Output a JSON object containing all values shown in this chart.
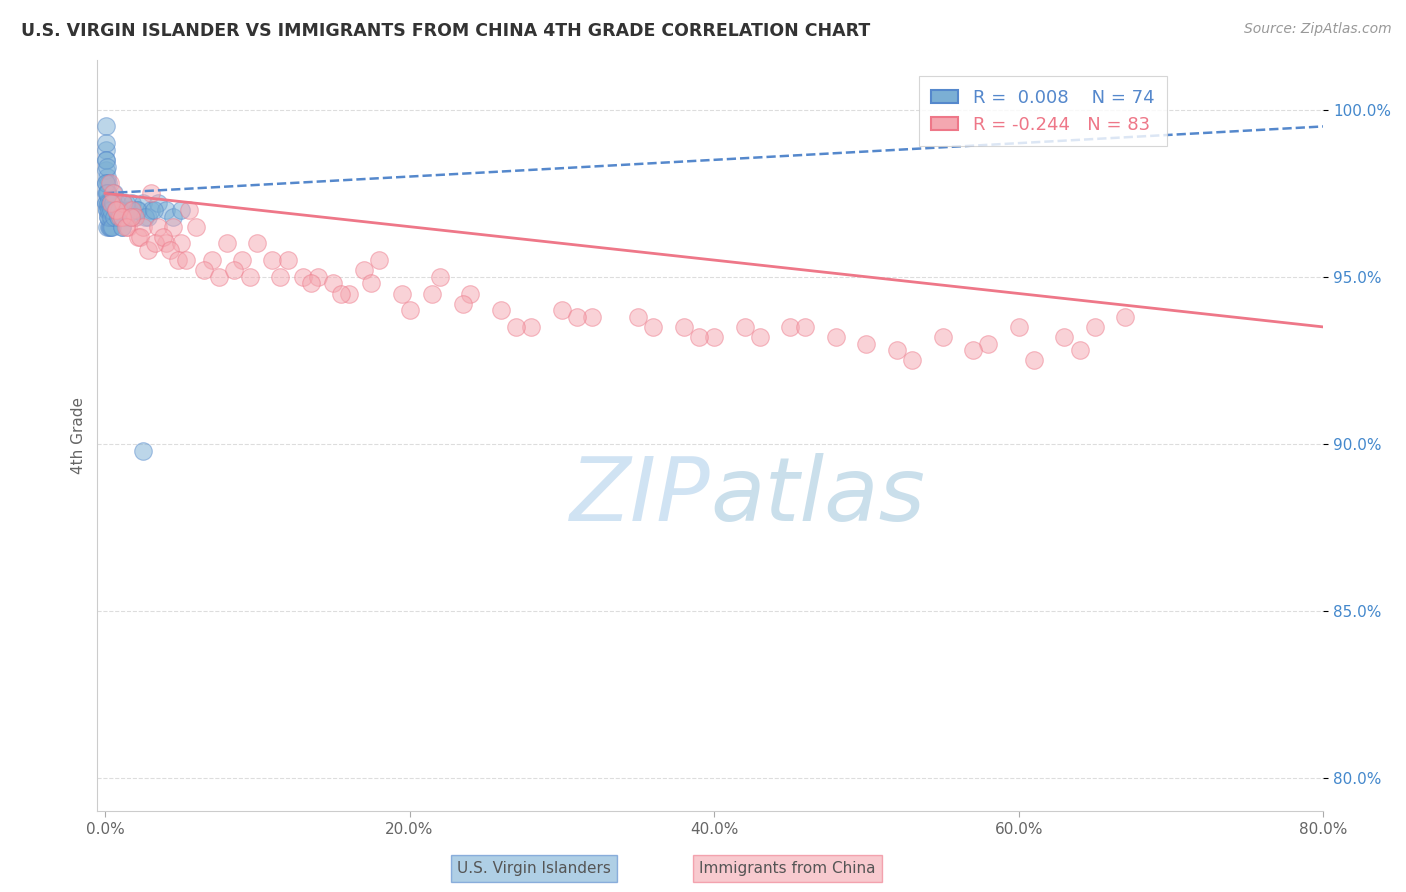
{
  "title": "U.S. VIRGIN ISLANDER VS IMMIGRANTS FROM CHINA 4TH GRADE CORRELATION CHART",
  "source": "Source: ZipAtlas.com",
  "ylabel": "4th Grade",
  "x_tick_labels": [
    "0.0%",
    "20.0%",
    "40.0%",
    "60.0%",
    "80.0%"
  ],
  "x_tick_values": [
    0.0,
    20.0,
    40.0,
    60.0,
    80.0
  ],
  "y_tick_labels": [
    "100.0%",
    "95.0%",
    "90.0%",
    "85.0%",
    "80.0%"
  ],
  "y_tick_values": [
    100.0,
    95.0,
    90.0,
    85.0,
    80.0
  ],
  "xlim": [
    -0.5,
    80.0
  ],
  "ylim": [
    79.0,
    101.5
  ],
  "legend_label_blue": "U.S. Virgin Islanders",
  "legend_label_pink": "Immigrants from China",
  "R_blue": "0.008",
  "N_blue": 74,
  "R_pink": "-0.244",
  "N_pink": 83,
  "scatter_blue_color": "#7BAFD4",
  "scatter_pink_color": "#F4A7B0",
  "trendline_blue_color": "#5588CC",
  "trendline_pink_color": "#EE7788",
  "background_color": "#FFFFFF",
  "grid_color": "#DDDDDD",
  "title_color": "#333333",
  "axis_label_color": "#666666",
  "watermark_color": "#D8EAF8",
  "blue_trendline_x": [
    0.0,
    80.0
  ],
  "blue_trendline_y": [
    97.5,
    99.5
  ],
  "pink_trendline_x": [
    0.0,
    80.0
  ],
  "pink_trendline_y": [
    97.5,
    93.5
  ],
  "blue_scatter_x": [
    0.05,
    0.05,
    0.05,
    0.08,
    0.08,
    0.1,
    0.1,
    0.1,
    0.12,
    0.12,
    0.15,
    0.15,
    0.15,
    0.18,
    0.2,
    0.2,
    0.22,
    0.25,
    0.25,
    0.28,
    0.3,
    0.3,
    0.35,
    0.35,
    0.4,
    0.4,
    0.45,
    0.5,
    0.5,
    0.55,
    0.6,
    0.65,
    0.7,
    0.8,
    0.9,
    1.0,
    1.1,
    1.2,
    1.4,
    1.6,
    1.8,
    2.0,
    2.2,
    2.5,
    2.8,
    3.0,
    3.5,
    4.0,
    4.5,
    5.0,
    0.05,
    0.07,
    0.09,
    0.11,
    0.13,
    0.17,
    0.23,
    0.27,
    0.33,
    0.38,
    0.42,
    0.48,
    0.55,
    0.62,
    0.72,
    0.85,
    0.95,
    1.15,
    1.35,
    1.7,
    2.1,
    2.6,
    3.2,
    2.5
  ],
  "blue_scatter_y": [
    99.5,
    98.8,
    98.2,
    99.0,
    98.5,
    97.8,
    98.5,
    97.2,
    98.0,
    97.5,
    98.3,
    97.0,
    96.5,
    97.8,
    97.5,
    96.8,
    97.2,
    97.0,
    96.5,
    97.3,
    97.0,
    96.5,
    97.2,
    96.8,
    97.0,
    96.5,
    97.0,
    97.2,
    96.8,
    97.0,
    97.5,
    96.8,
    97.0,
    97.2,
    96.8,
    97.0,
    96.5,
    97.2,
    96.8,
    97.0,
    97.2,
    96.8,
    97.0,
    97.2,
    96.8,
    97.0,
    97.2,
    97.0,
    96.8,
    97.0,
    97.5,
    97.8,
    97.2,
    97.5,
    97.0,
    97.2,
    96.8,
    97.0,
    97.2,
    96.8,
    97.0,
    96.5,
    97.2,
    96.8,
    97.0,
    96.8,
    97.0,
    96.5,
    97.2,
    96.8,
    97.0,
    96.8,
    97.0,
    89.8
  ],
  "pink_scatter_x": [
    0.3,
    0.5,
    0.8,
    1.0,
    1.2,
    1.5,
    1.8,
    2.0,
    2.2,
    2.5,
    3.0,
    3.5,
    4.0,
    4.5,
    5.0,
    5.5,
    6.0,
    7.0,
    8.0,
    9.0,
    10.0,
    11.0,
    12.0,
    13.0,
    14.0,
    15.0,
    16.0,
    17.0,
    18.0,
    20.0,
    22.0,
    24.0,
    26.0,
    28.0,
    30.0,
    32.0,
    35.0,
    38.0,
    40.0,
    42.0,
    45.0,
    48.0,
    50.0,
    52.0,
    55.0,
    58.0,
    60.0,
    63.0,
    65.0,
    67.0,
    0.4,
    0.7,
    1.1,
    1.4,
    1.7,
    2.3,
    2.8,
    3.3,
    3.8,
    4.3,
    4.8,
    5.3,
    6.5,
    7.5,
    8.5,
    9.5,
    11.5,
    13.5,
    15.5,
    17.5,
    19.5,
    21.5,
    23.5,
    27.0,
    31.0,
    36.0,
    39.0,
    43.0,
    46.0,
    53.0,
    57.0,
    61.0,
    64.0
  ],
  "pink_scatter_y": [
    97.8,
    97.5,
    97.0,
    96.8,
    97.2,
    96.5,
    97.0,
    96.8,
    96.2,
    96.5,
    97.5,
    96.5,
    96.0,
    96.5,
    96.0,
    97.0,
    96.5,
    95.5,
    96.0,
    95.5,
    96.0,
    95.5,
    95.5,
    95.0,
    95.0,
    94.8,
    94.5,
    95.2,
    95.5,
    94.0,
    95.0,
    94.5,
    94.0,
    93.5,
    94.0,
    93.8,
    93.8,
    93.5,
    93.2,
    93.5,
    93.5,
    93.2,
    93.0,
    92.8,
    93.2,
    93.0,
    93.5,
    93.2,
    93.5,
    93.8,
    97.2,
    97.0,
    96.8,
    96.5,
    96.8,
    96.2,
    95.8,
    96.0,
    96.2,
    95.8,
    95.5,
    95.5,
    95.2,
    95.0,
    95.2,
    95.0,
    95.0,
    94.8,
    94.5,
    94.8,
    94.5,
    94.5,
    94.2,
    93.5,
    93.8,
    93.5,
    93.2,
    93.2,
    93.5,
    92.5,
    92.8,
    92.5,
    92.8
  ]
}
